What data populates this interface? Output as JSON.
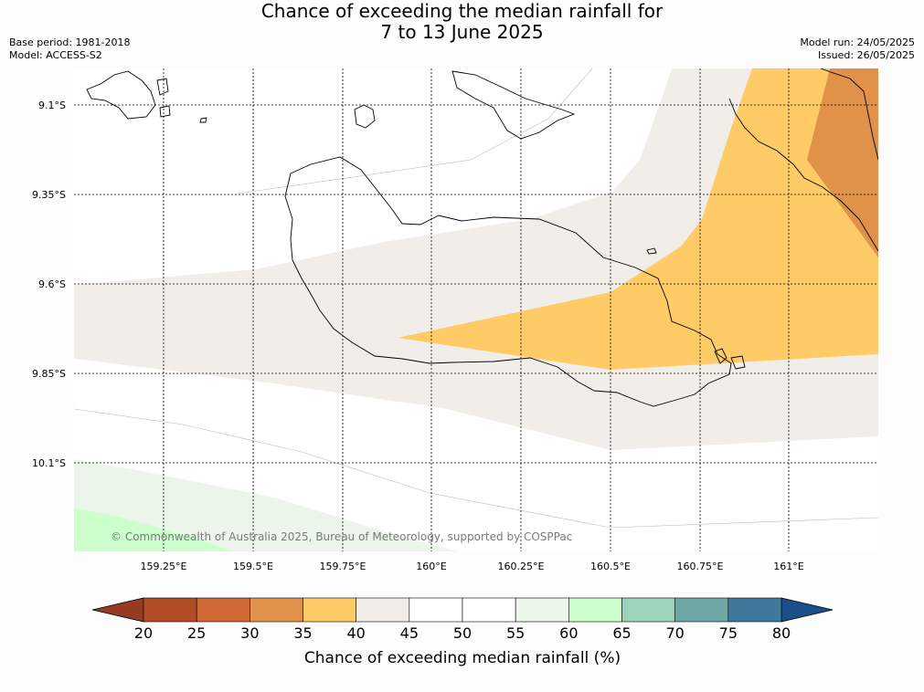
{
  "title": {
    "line1": "Chance of exceeding the median rainfall for",
    "line2": "7 to 13 June 2025"
  },
  "meta_left": [
    "Base period: 1981-2018",
    "Model: ACCESS-S2"
  ],
  "meta_right": [
    "Model run: 24/05/2025",
    "Issued: 26/05/2025"
  ],
  "map": {
    "lat_labels": [
      "9.1°S",
      "9.35°S",
      "9.6°S",
      "9.85°S",
      "10.1°S"
    ],
    "lon_labels": [
      "159.25°E",
      "159.5°E",
      "159.75°E",
      "160°E",
      "160.25°E",
      "160.5°E",
      "160.75°E",
      "161°E"
    ],
    "copyright": "© Commonwealth of Australia 2025, Bureau of Meteorology, supported by COSPPac",
    "land": "Guadalcanal, Florida Islands and Malaita coastlines (Solomon Islands)",
    "category_colors": {
      "30-35": "#e0924a",
      "35-40": "#fecb67",
      "40-45": "#f1ede8",
      "45-55": "#ffffff",
      "55-60": "#ebf5ea",
      "60-65": "#ccffcc"
    }
  },
  "colorbar": {
    "label": "Chance of exceeding median rainfall (%)",
    "ticks": [
      "20",
      "25",
      "30",
      "35",
      "40",
      "45",
      "50",
      "55",
      "60",
      "65",
      "70",
      "75",
      "80"
    ],
    "low_extend_color": "#953b21",
    "high_extend_color": "#1c4f8a",
    "colors": [
      "#b14d26",
      "#cf6a35",
      "#e0924a",
      "#fecb67",
      "#f1ede8",
      "#ffffff",
      "#ffffff",
      "#ebf5ea",
      "#ccffcc",
      "#9dd3bc",
      "#6fa7a7",
      "#3f7a9c"
    ]
  }
}
